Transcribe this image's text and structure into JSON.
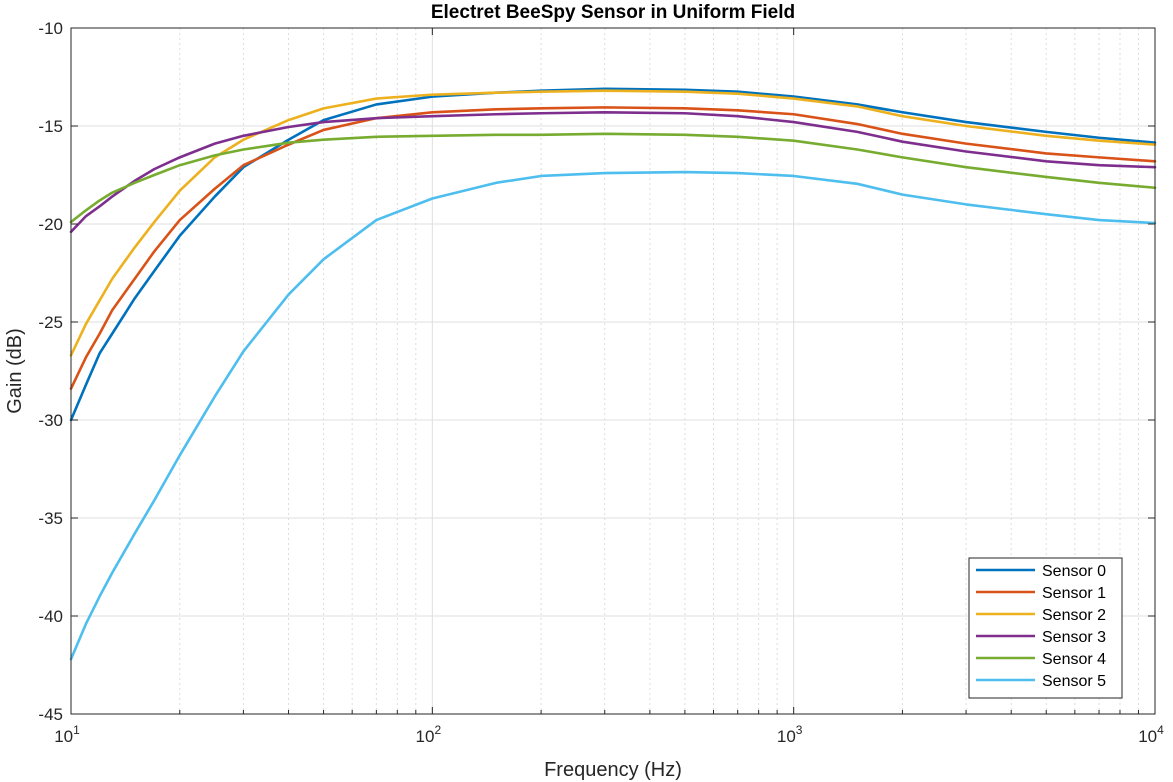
{
  "chart_data": {
    "type": "line",
    "title": "Electret BeeSpy Sensor in Uniform Field",
    "xlabel": "Frequency (Hz)",
    "ylabel": "Gain (dB)",
    "xscale": "log",
    "xlim": [
      10,
      10000
    ],
    "ylim": [
      -45,
      -10
    ],
    "grid": "on",
    "minor_grid": "on",
    "legend_location": "bottom-right",
    "x_tick_labels": [
      {
        "base": "10",
        "exp": "1"
      },
      {
        "base": "10",
        "exp": "2"
      },
      {
        "base": "10",
        "exp": "3"
      },
      {
        "base": "10",
        "exp": "4"
      }
    ],
    "y_tick_labels": [
      "-10",
      "-15",
      "-20",
      "-25",
      "-30",
      "-35",
      "-40",
      "-45"
    ],
    "x": [
      10,
      11,
      12,
      13,
      15,
      17,
      20,
      25,
      30,
      40,
      50,
      70,
      100,
      150,
      200,
      300,
      500,
      700,
      1000,
      1500,
      2000,
      3000,
      5000,
      7000,
      10000
    ],
    "series": [
      {
        "name": "Sensor 0",
        "color": "#0072BD",
        "values": [
          -30.0,
          -28.2,
          -26.6,
          -25.6,
          -23.8,
          -22.4,
          -20.6,
          -18.6,
          -17.1,
          -15.7,
          -14.7,
          -13.9,
          -13.5,
          -13.3,
          -13.2,
          -13.1,
          -13.15,
          -13.25,
          -13.5,
          -13.9,
          -14.3,
          -14.8,
          -15.3,
          -15.6,
          -15.85
        ]
      },
      {
        "name": "Sensor 1",
        "color": "#D95319",
        "values": [
          -28.4,
          -26.8,
          -25.6,
          -24.4,
          -22.8,
          -21.4,
          -19.8,
          -18.2,
          -17.0,
          -15.95,
          -15.2,
          -14.6,
          -14.3,
          -14.15,
          -14.1,
          -14.05,
          -14.1,
          -14.2,
          -14.4,
          -14.9,
          -15.4,
          -15.9,
          -16.4,
          -16.6,
          -16.8
        ]
      },
      {
        "name": "Sensor 2",
        "color": "#EDB120",
        "values": [
          -26.7,
          -25.1,
          -23.9,
          -22.8,
          -21.2,
          -19.9,
          -18.3,
          -16.6,
          -15.7,
          -14.7,
          -14.1,
          -13.6,
          -13.4,
          -13.3,
          -13.25,
          -13.2,
          -13.25,
          -13.35,
          -13.6,
          -14.0,
          -14.5,
          -15.0,
          -15.5,
          -15.75,
          -15.95
        ]
      },
      {
        "name": "Sensor 3",
        "color": "#7E2F8E",
        "values": [
          -20.4,
          -19.6,
          -19.1,
          -18.6,
          -17.8,
          -17.2,
          -16.6,
          -15.9,
          -15.5,
          -15.05,
          -14.8,
          -14.6,
          -14.5,
          -14.4,
          -14.35,
          -14.3,
          -14.35,
          -14.5,
          -14.8,
          -15.3,
          -15.8,
          -16.3,
          -16.8,
          -17.0,
          -17.1
        ]
      },
      {
        "name": "Sensor 4",
        "color": "#77AC30",
        "values": [
          -19.9,
          -19.3,
          -18.8,
          -18.4,
          -17.9,
          -17.5,
          -17.0,
          -16.5,
          -16.2,
          -15.85,
          -15.7,
          -15.55,
          -15.5,
          -15.45,
          -15.45,
          -15.4,
          -15.45,
          -15.55,
          -15.75,
          -16.2,
          -16.6,
          -17.1,
          -17.6,
          -17.9,
          -18.15
        ]
      },
      {
        "name": "Sensor 5",
        "color": "#4DBEEE",
        "values": [
          -42.2,
          -40.4,
          -39.0,
          -37.8,
          -35.8,
          -34.1,
          -31.8,
          -28.8,
          -26.5,
          -23.6,
          -21.8,
          -19.8,
          -18.7,
          -17.9,
          -17.55,
          -17.4,
          -17.35,
          -17.4,
          -17.55,
          -17.95,
          -18.5,
          -19.0,
          -19.5,
          -19.8,
          -19.95
        ]
      }
    ]
  }
}
